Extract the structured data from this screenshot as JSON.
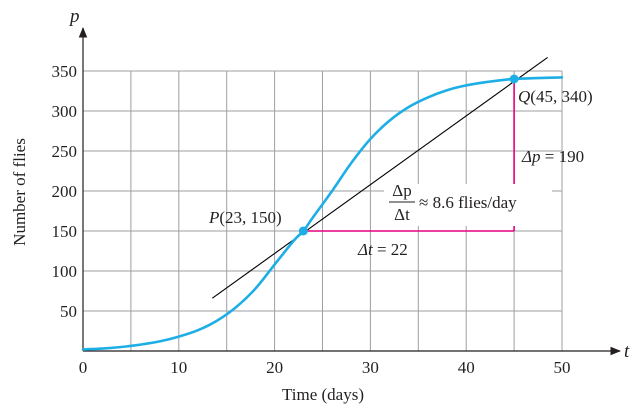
{
  "chart_data": {
    "type": "line",
    "title": "",
    "xlabel": "Time (days)",
    "ylabel": "Number  of flies",
    "x_axis_symbol": "t",
    "y_axis_symbol": "p",
    "xlim": [
      0,
      50
    ],
    "ylim": [
      0,
      350
    ],
    "x_ticks": [
      0,
      10,
      20,
      30,
      40,
      50
    ],
    "x_tick_labels": [
      "0",
      "10",
      "20",
      "30",
      "40",
      "50"
    ],
    "y_ticks": [
      50,
      100,
      150,
      200,
      250,
      300,
      350
    ],
    "y_tick_labels": [
      "50",
      "100",
      "150",
      "200",
      "250",
      "300",
      "350"
    ],
    "grid": true,
    "grid_x_step": 5,
    "grid_y_step": 50,
    "series": [
      {
        "x": [
          0,
          2,
          4,
          6,
          8,
          10,
          12,
          14,
          16,
          18,
          20,
          22,
          23,
          24,
          26,
          28,
          30,
          32,
          34,
          36,
          38,
          40,
          42,
          44,
          45,
          47,
          50
        ],
        "y": [
          2,
          3,
          5,
          8,
          12,
          18,
          26,
          38,
          55,
          78,
          108,
          138,
          150,
          167,
          200,
          235,
          265,
          288,
          305,
          317,
          326,
          332,
          336,
          339,
          340,
          341,
          342
        ],
        "color": "#1eaee6"
      }
    ],
    "secant_line": {
      "x": [
        13.5,
        48.5
      ],
      "y": [
        66,
        367
      ],
      "color": "#000000"
    },
    "points": [
      {
        "label_letter": "P",
        "label_coords": "(23, 150)",
        "x": 23,
        "y": 150,
        "color": "#1eaee6"
      },
      {
        "label_letter": "Q",
        "label_coords": "(45, 340)",
        "x": 45,
        "y": 340,
        "color": "#1eaee6"
      }
    ],
    "delta_lines": {
      "color": "#e6007e"
    },
    "annotations": {
      "delta_t_symbol": "Δt",
      "delta_t_value": "= 22",
      "delta_p_symbol": "Δp",
      "delta_p_value": "= 190",
      "slope_numerator": "Δp",
      "slope_denominator": "Δt",
      "slope_value": "≈ 8.6 flies/day"
    }
  }
}
